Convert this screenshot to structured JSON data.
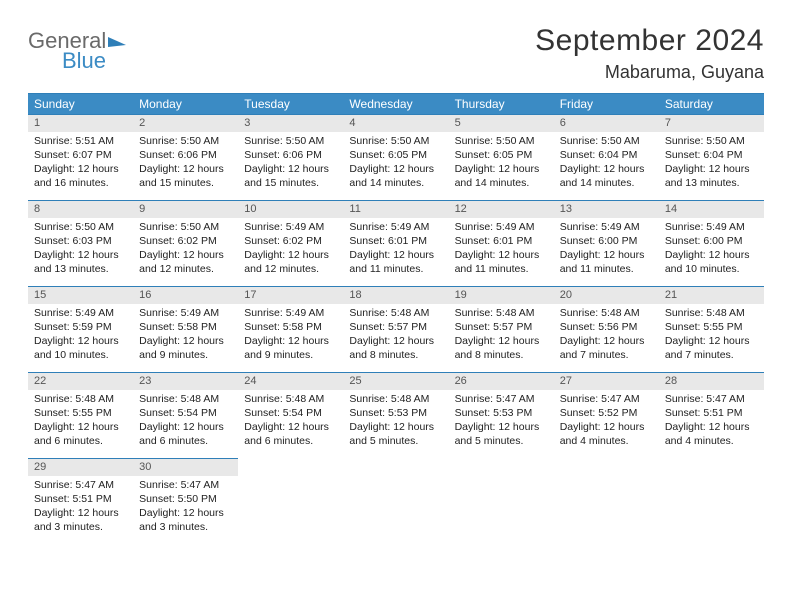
{
  "brand": {
    "word1": "General",
    "word2": "Blue"
  },
  "title": "September 2024",
  "location": "Mabaruma, Guyana",
  "colors": {
    "header_bg": "#3b8bc4",
    "header_text": "#ffffff",
    "rule": "#2f7fb8",
    "daynum_bg": "#e8e8e8",
    "daynum_text": "#555555",
    "body_text": "#222222",
    "page_bg": "#ffffff",
    "brand_gray": "#6a6a6a",
    "brand_blue": "#3b8bc4"
  },
  "typography": {
    "month_title_fontsize": 30,
    "location_fontsize": 18,
    "dow_fontsize": 12,
    "cell_fontsize": 10.5,
    "daynum_fontsize": 11
  },
  "days_of_week": [
    "Sunday",
    "Monday",
    "Tuesday",
    "Wednesday",
    "Thursday",
    "Friday",
    "Saturday"
  ],
  "cells": [
    {
      "n": "1",
      "sr": "Sunrise: 5:51 AM",
      "ss": "Sunset: 6:07 PM",
      "dl": "Daylight: 12 hours and 16 minutes."
    },
    {
      "n": "2",
      "sr": "Sunrise: 5:50 AM",
      "ss": "Sunset: 6:06 PM",
      "dl": "Daylight: 12 hours and 15 minutes."
    },
    {
      "n": "3",
      "sr": "Sunrise: 5:50 AM",
      "ss": "Sunset: 6:06 PM",
      "dl": "Daylight: 12 hours and 15 minutes."
    },
    {
      "n": "4",
      "sr": "Sunrise: 5:50 AM",
      "ss": "Sunset: 6:05 PM",
      "dl": "Daylight: 12 hours and 14 minutes."
    },
    {
      "n": "5",
      "sr": "Sunrise: 5:50 AM",
      "ss": "Sunset: 6:05 PM",
      "dl": "Daylight: 12 hours and 14 minutes."
    },
    {
      "n": "6",
      "sr": "Sunrise: 5:50 AM",
      "ss": "Sunset: 6:04 PM",
      "dl": "Daylight: 12 hours and 14 minutes."
    },
    {
      "n": "7",
      "sr": "Sunrise: 5:50 AM",
      "ss": "Sunset: 6:04 PM",
      "dl": "Daylight: 12 hours and 13 minutes."
    },
    {
      "n": "8",
      "sr": "Sunrise: 5:50 AM",
      "ss": "Sunset: 6:03 PM",
      "dl": "Daylight: 12 hours and 13 minutes."
    },
    {
      "n": "9",
      "sr": "Sunrise: 5:50 AM",
      "ss": "Sunset: 6:02 PM",
      "dl": "Daylight: 12 hours and 12 minutes."
    },
    {
      "n": "10",
      "sr": "Sunrise: 5:49 AM",
      "ss": "Sunset: 6:02 PM",
      "dl": "Daylight: 12 hours and 12 minutes."
    },
    {
      "n": "11",
      "sr": "Sunrise: 5:49 AM",
      "ss": "Sunset: 6:01 PM",
      "dl": "Daylight: 12 hours and 11 minutes."
    },
    {
      "n": "12",
      "sr": "Sunrise: 5:49 AM",
      "ss": "Sunset: 6:01 PM",
      "dl": "Daylight: 12 hours and 11 minutes."
    },
    {
      "n": "13",
      "sr": "Sunrise: 5:49 AM",
      "ss": "Sunset: 6:00 PM",
      "dl": "Daylight: 12 hours and 11 minutes."
    },
    {
      "n": "14",
      "sr": "Sunrise: 5:49 AM",
      "ss": "Sunset: 6:00 PM",
      "dl": "Daylight: 12 hours and 10 minutes."
    },
    {
      "n": "15",
      "sr": "Sunrise: 5:49 AM",
      "ss": "Sunset: 5:59 PM",
      "dl": "Daylight: 12 hours and 10 minutes."
    },
    {
      "n": "16",
      "sr": "Sunrise: 5:49 AM",
      "ss": "Sunset: 5:58 PM",
      "dl": "Daylight: 12 hours and 9 minutes."
    },
    {
      "n": "17",
      "sr": "Sunrise: 5:49 AM",
      "ss": "Sunset: 5:58 PM",
      "dl": "Daylight: 12 hours and 9 minutes."
    },
    {
      "n": "18",
      "sr": "Sunrise: 5:48 AM",
      "ss": "Sunset: 5:57 PM",
      "dl": "Daylight: 12 hours and 8 minutes."
    },
    {
      "n": "19",
      "sr": "Sunrise: 5:48 AM",
      "ss": "Sunset: 5:57 PM",
      "dl": "Daylight: 12 hours and 8 minutes."
    },
    {
      "n": "20",
      "sr": "Sunrise: 5:48 AM",
      "ss": "Sunset: 5:56 PM",
      "dl": "Daylight: 12 hours and 7 minutes."
    },
    {
      "n": "21",
      "sr": "Sunrise: 5:48 AM",
      "ss": "Sunset: 5:55 PM",
      "dl": "Daylight: 12 hours and 7 minutes."
    },
    {
      "n": "22",
      "sr": "Sunrise: 5:48 AM",
      "ss": "Sunset: 5:55 PM",
      "dl": "Daylight: 12 hours and 6 minutes."
    },
    {
      "n": "23",
      "sr": "Sunrise: 5:48 AM",
      "ss": "Sunset: 5:54 PM",
      "dl": "Daylight: 12 hours and 6 minutes."
    },
    {
      "n": "24",
      "sr": "Sunrise: 5:48 AM",
      "ss": "Sunset: 5:54 PM",
      "dl": "Daylight: 12 hours and 6 minutes."
    },
    {
      "n": "25",
      "sr": "Sunrise: 5:48 AM",
      "ss": "Sunset: 5:53 PM",
      "dl": "Daylight: 12 hours and 5 minutes."
    },
    {
      "n": "26",
      "sr": "Sunrise: 5:47 AM",
      "ss": "Sunset: 5:53 PM",
      "dl": "Daylight: 12 hours and 5 minutes."
    },
    {
      "n": "27",
      "sr": "Sunrise: 5:47 AM",
      "ss": "Sunset: 5:52 PM",
      "dl": "Daylight: 12 hours and 4 minutes."
    },
    {
      "n": "28",
      "sr": "Sunrise: 5:47 AM",
      "ss": "Sunset: 5:51 PM",
      "dl": "Daylight: 12 hours and 4 minutes."
    },
    {
      "n": "29",
      "sr": "Sunrise: 5:47 AM",
      "ss": "Sunset: 5:51 PM",
      "dl": "Daylight: 12 hours and 3 minutes."
    },
    {
      "n": "30",
      "sr": "Sunrise: 5:47 AM",
      "ss": "Sunset: 5:50 PM",
      "dl": "Daylight: 12 hours and 3 minutes."
    }
  ]
}
